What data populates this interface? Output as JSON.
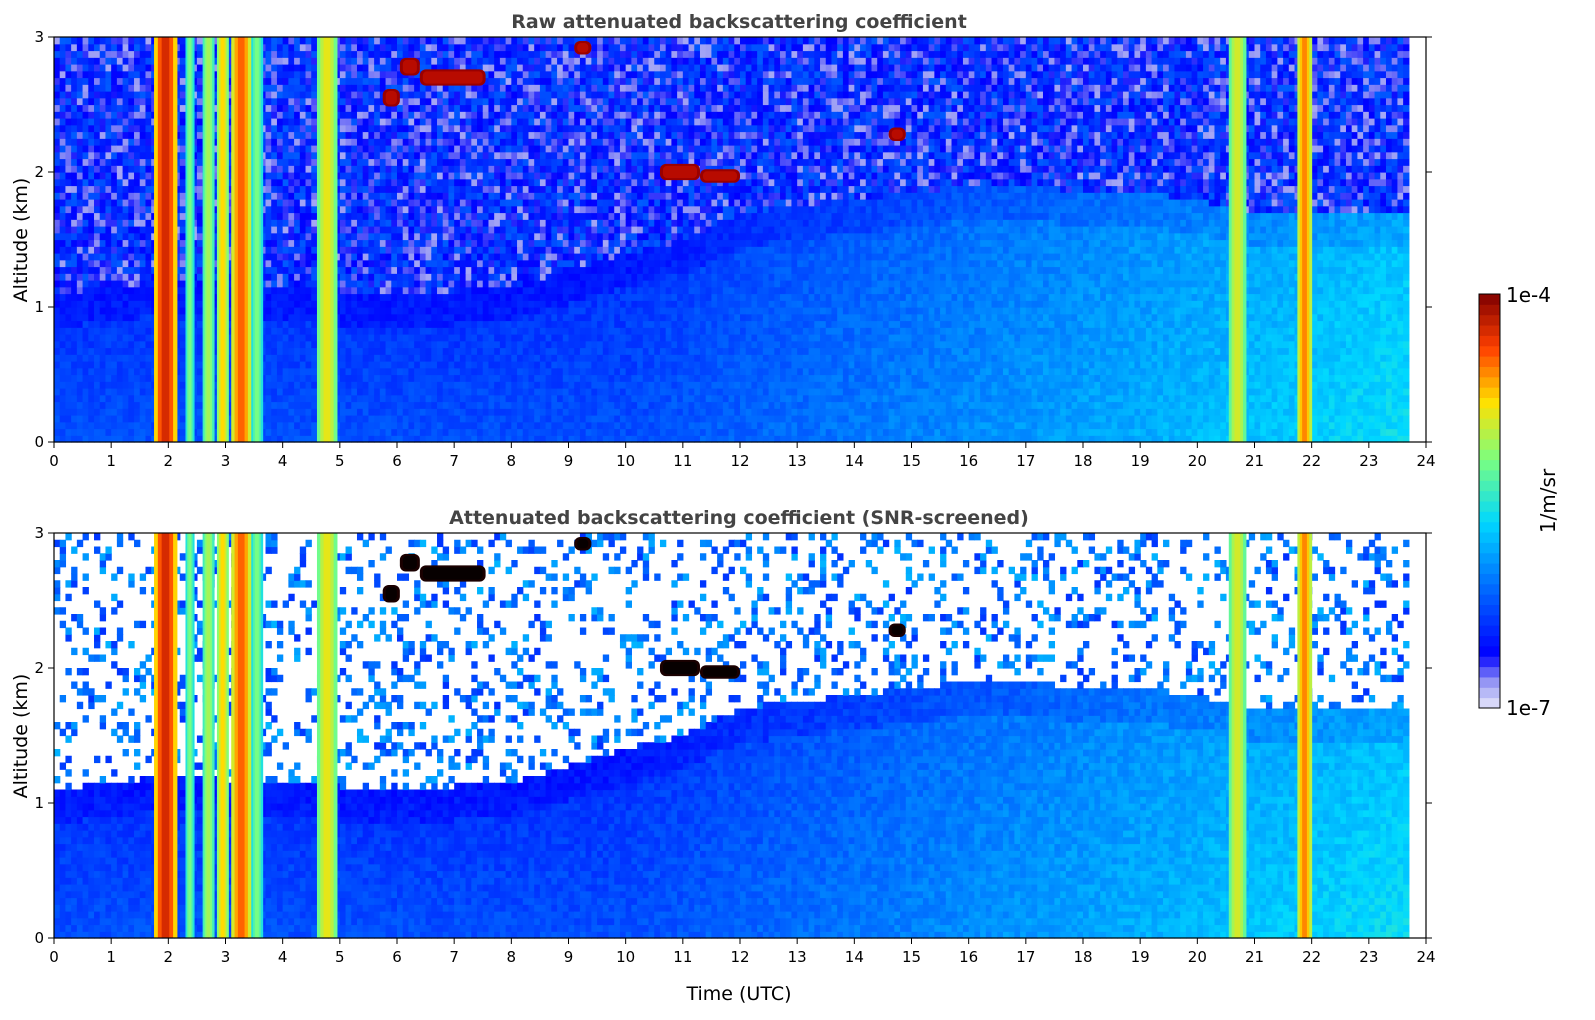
{
  "chart_data": [
    {
      "type": "heatmap",
      "title": "Raw attenuated backscattering coefficient",
      "xlabel": "",
      "ylabel": "Altitude (km)",
      "xlim": [
        0,
        24
      ],
      "ylim": [
        0,
        3
      ],
      "xticks": [
        0,
        1,
        2,
        3,
        4,
        5,
        6,
        7,
        8,
        9,
        10,
        11,
        12,
        13,
        14,
        15,
        16,
        17,
        18,
        19,
        20,
        21,
        22,
        23,
        24
      ],
      "yticks": [
        0,
        1,
        2,
        3
      ],
      "data_end_time": 23.7,
      "snr_screened": false,
      "boundary_layer_top_km": {
        "time": [
          0,
          2,
          4,
          6,
          8,
          10,
          11,
          12,
          13,
          14,
          15,
          16,
          17,
          18,
          19,
          20,
          21,
          22,
          23,
          23.7
        ],
        "value": [
          1.1,
          1.2,
          1.15,
          1.1,
          1.15,
          1.4,
          1.5,
          1.7,
          1.75,
          1.8,
          1.85,
          1.9,
          1.9,
          1.85,
          1.85,
          1.8,
          1.7,
          1.7,
          1.7,
          1.7
        ]
      },
      "precipitation_streaks": [
        {
          "start": 1.75,
          "end": 2.15,
          "intensity": 0.92
        },
        {
          "start": 2.3,
          "end": 2.45,
          "intensity": 0.6
        },
        {
          "start": 2.6,
          "end": 2.8,
          "intensity": 0.65
        },
        {
          "start": 2.85,
          "end": 3.05,
          "intensity": 0.75
        },
        {
          "start": 3.1,
          "end": 3.45,
          "intensity": 0.85
        },
        {
          "start": 3.45,
          "end": 3.65,
          "intensity": 0.6
        },
        {
          "start": 4.6,
          "end": 4.95,
          "intensity": 0.72
        },
        {
          "start": 20.55,
          "end": 20.85,
          "intensity": 0.7
        },
        {
          "start": 21.75,
          "end": 22.0,
          "intensity": 0.82
        }
      ],
      "cloud_patches": [
        {
          "t0": 5.75,
          "t1": 6.05,
          "z": 2.55,
          "h": 0.13
        },
        {
          "t0": 6.05,
          "t1": 6.4,
          "z": 2.78,
          "h": 0.13
        },
        {
          "t0": 6.4,
          "t1": 7.55,
          "z": 2.7,
          "h": 0.12
        },
        {
          "t0": 9.1,
          "t1": 9.4,
          "z": 2.92,
          "h": 0.1
        },
        {
          "t0": 10.6,
          "t1": 11.3,
          "z": 2.0,
          "h": 0.12
        },
        {
          "t0": 11.3,
          "t1": 12.0,
          "z": 1.97,
          "h": 0.1
        },
        {
          "t0": 14.6,
          "t1": 14.9,
          "z": 2.28,
          "h": 0.1
        }
      ]
    },
    {
      "type": "heatmap",
      "title": "Attenuated backscattering coefficient (SNR-screened)",
      "xlabel": "Time (UTC)",
      "ylabel": "Altitude (km)",
      "xlim": [
        0,
        24
      ],
      "ylim": [
        0,
        3
      ],
      "xticks": [
        0,
        1,
        2,
        3,
        4,
        5,
        6,
        7,
        8,
        9,
        10,
        11,
        12,
        13,
        14,
        15,
        16,
        17,
        18,
        19,
        20,
        21,
        22,
        23,
        24
      ],
      "yticks": [
        0,
        1,
        2,
        3
      ],
      "data_end_time": 23.7,
      "snr_screened": true,
      "boundary_layer_top_km": {
        "time": [
          0,
          2,
          4,
          6,
          8,
          10,
          11,
          12,
          13,
          14,
          15,
          16,
          17,
          18,
          19,
          20,
          21,
          22,
          23,
          23.7
        ],
        "value": [
          1.1,
          1.2,
          1.15,
          1.1,
          1.15,
          1.4,
          1.5,
          1.7,
          1.75,
          1.8,
          1.85,
          1.9,
          1.9,
          1.85,
          1.85,
          1.8,
          1.7,
          1.7,
          1.7,
          1.7
        ]
      },
      "precipitation_streaks": [
        {
          "start": 1.75,
          "end": 2.15,
          "intensity": 0.92
        },
        {
          "start": 2.3,
          "end": 2.45,
          "intensity": 0.6
        },
        {
          "start": 2.6,
          "end": 2.8,
          "intensity": 0.65
        },
        {
          "start": 2.85,
          "end": 3.05,
          "intensity": 0.75
        },
        {
          "start": 3.1,
          "end": 3.45,
          "intensity": 0.85
        },
        {
          "start": 3.45,
          "end": 3.65,
          "intensity": 0.6
        },
        {
          "start": 4.6,
          "end": 4.95,
          "intensity": 0.72
        },
        {
          "start": 20.55,
          "end": 20.85,
          "intensity": 0.7
        },
        {
          "start": 21.75,
          "end": 22.0,
          "intensity": 0.82
        }
      ],
      "cloud_patches": [
        {
          "t0": 5.75,
          "t1": 6.05,
          "z": 2.55,
          "h": 0.13
        },
        {
          "t0": 6.05,
          "t1": 6.4,
          "z": 2.78,
          "h": 0.13
        },
        {
          "t0": 6.4,
          "t1": 7.55,
          "z": 2.7,
          "h": 0.12
        },
        {
          "t0": 9.1,
          "t1": 9.4,
          "z": 2.92,
          "h": 0.1
        },
        {
          "t0": 10.6,
          "t1": 11.3,
          "z": 2.0,
          "h": 0.12
        },
        {
          "t0": 11.3,
          "t1": 12.0,
          "z": 1.97,
          "h": 0.1
        },
        {
          "t0": 14.6,
          "t1": 14.9,
          "z": 2.28,
          "h": 0.1
        }
      ]
    }
  ],
  "colorbar": {
    "label": "1/m/sr",
    "max_label": "1e-4",
    "min_label": "1e-7",
    "min": 1e-07,
    "max": 0.0001,
    "scale": "log",
    "colormap": "jet"
  },
  "colors": {
    "title": "#444444",
    "axes": "#000000",
    "screened_background": "#ffffff"
  }
}
